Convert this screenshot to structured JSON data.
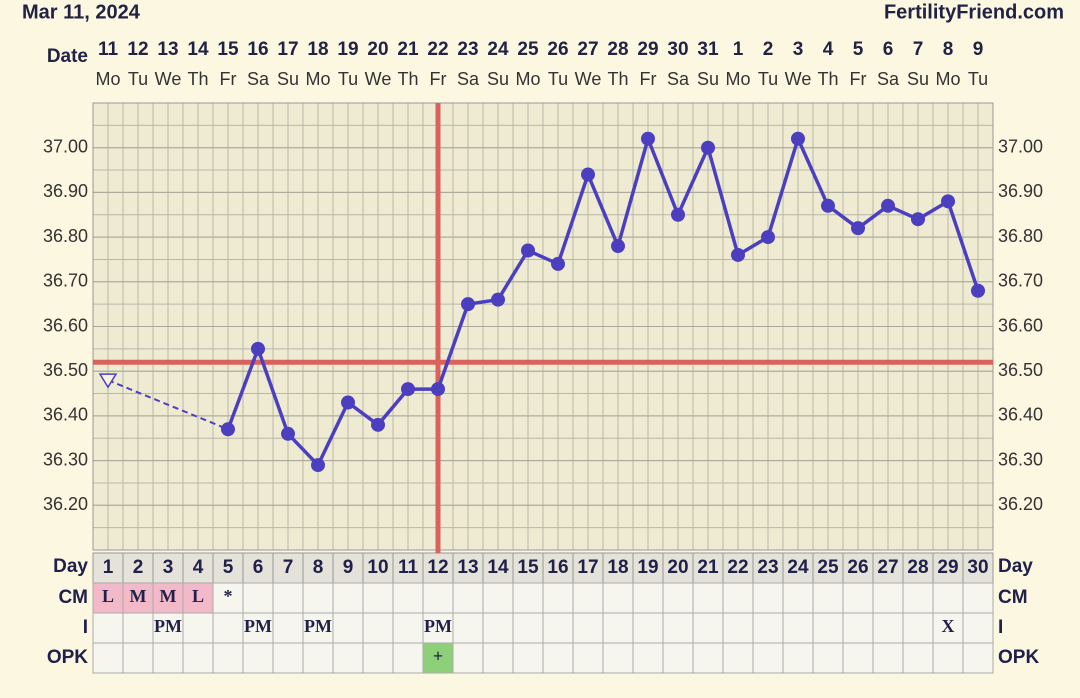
{
  "chart_data": {
    "type": "line",
    "title": "Mar 11, 2024",
    "site": "FertilityFriend.com",
    "date_label": "Date",
    "day_label": "Day",
    "dates": [
      11,
      12,
      13,
      14,
      15,
      16,
      17,
      18,
      19,
      20,
      21,
      22,
      23,
      24,
      25,
      26,
      27,
      28,
      29,
      30,
      31,
      1,
      2,
      3,
      4,
      5,
      6,
      7,
      8,
      9
    ],
    "weekdays": [
      "Mo",
      "Tu",
      "We",
      "Th",
      "Fr",
      "Sa",
      "Su",
      "Mo",
      "Tu",
      "We",
      "Th",
      "Fr",
      "Sa",
      "Su",
      "Mo",
      "Tu",
      "We",
      "Th",
      "Fr",
      "Sa",
      "Su",
      "Mo",
      "Tu",
      "We",
      "Th",
      "Fr",
      "Sa",
      "Su",
      "Mo",
      "Tu"
    ],
    "categories": [
      1,
      2,
      3,
      4,
      5,
      6,
      7,
      8,
      9,
      10,
      11,
      12,
      13,
      14,
      15,
      16,
      17,
      18,
      19,
      20,
      21,
      22,
      23,
      24,
      25,
      26,
      27,
      28,
      29,
      30
    ],
    "values": [
      null,
      null,
      null,
      null,
      36.37,
      36.55,
      36.36,
      36.29,
      36.43,
      36.38,
      36.46,
      36.46,
      36.65,
      36.66,
      36.77,
      36.74,
      36.94,
      36.78,
      37.02,
      36.85,
      37.0,
      36.76,
      36.8,
      37.02,
      36.87,
      36.82,
      36.87,
      36.84,
      36.88,
      36.68
    ],
    "color": "#4b3fc0",
    "start_marker": 36.48,
    "coverline": 36.52,
    "ovulation_day": 12,
    "marker_line_color": "#d9625c",
    "ylim": [
      36.1,
      37.1
    ],
    "yticks": [
      {
        "value": 36.2,
        "label": "36.20"
      },
      {
        "value": 36.3,
        "label": "36.30"
      },
      {
        "value": 36.4,
        "label": "36.40"
      },
      {
        "value": 36.5,
        "label": "36.50"
      },
      {
        "value": 36.6,
        "label": "36.60"
      },
      {
        "value": 36.7,
        "label": "36.70"
      },
      {
        "value": 36.8,
        "label": "36.80"
      },
      {
        "value": 36.9,
        "label": "36.90"
      },
      {
        "value": 37.0,
        "label": "37.00"
      }
    ],
    "grid": true,
    "rows": [
      {
        "label": "CM",
        "cells": [
          "L",
          "M",
          "M",
          "L",
          "*",
          null,
          null,
          null,
          null,
          null,
          null,
          null,
          null,
          null,
          null,
          null,
          null,
          null,
          null,
          null,
          null,
          null,
          null,
          null,
          null,
          null,
          null,
          null,
          null,
          null
        ],
        "fills": [
          "#f2b9c9",
          "#f2b9c9",
          "#f2b9c9",
          "#f2b9c9",
          null,
          null,
          null,
          null,
          null,
          null,
          null,
          null,
          null,
          null,
          null,
          null,
          null,
          null,
          null,
          null,
          null,
          null,
          null,
          null,
          null,
          null,
          null,
          null,
          null,
          null
        ]
      },
      {
        "label": "I",
        "cells": [
          null,
          null,
          "PM",
          null,
          null,
          "PM",
          null,
          "PM",
          null,
          null,
          null,
          "PM",
          null,
          null,
          null,
          null,
          null,
          null,
          null,
          null,
          null,
          null,
          null,
          null,
          null,
          null,
          null,
          null,
          "X",
          null
        ]
      },
      {
        "label": "OPK",
        "cells": [
          null,
          null,
          null,
          null,
          null,
          null,
          null,
          null,
          null,
          null,
          null,
          "+",
          null,
          null,
          null,
          null,
          null,
          null,
          null,
          null,
          null,
          null,
          null,
          null,
          null,
          null,
          null,
          null,
          null,
          null
        ],
        "fills": [
          null,
          null,
          null,
          null,
          null,
          null,
          null,
          null,
          null,
          null,
          null,
          "#8ed07a",
          null,
          null,
          null,
          null,
          null,
          null,
          null,
          null,
          null,
          null,
          null,
          null,
          null,
          null,
          null,
          null,
          null,
          null
        ]
      }
    ]
  }
}
